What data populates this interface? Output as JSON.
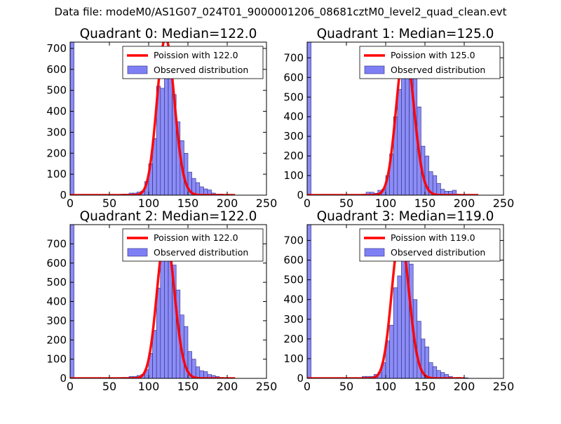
{
  "figure": {
    "suptitle": "Data file: modeM0/AS1G07_024T01_9000001206_08681cztM0_level2_quad_clean.evt",
    "colors": {
      "poisson": "#ff0000",
      "hist_fill": "#7f7ff5",
      "hist_edge": "#2a2a80"
    }
  },
  "chart_data": [
    {
      "type": "bar",
      "title": "Quadrant 0: Median=122.0",
      "median": 122.0,
      "legend": [
        "Poission with 122.0",
        "Observed distribution"
      ],
      "legend_position": "top-right",
      "xlim": [
        0,
        250
      ],
      "ylim": [
        0,
        730
      ],
      "xticks": [
        0,
        50,
        100,
        150,
        200,
        250
      ],
      "yticks": [
        0,
        100,
        200,
        300,
        400,
        500,
        600,
        700
      ],
      "bin_width": 5,
      "bins": [
        [
          0,
          730
        ],
        [
          65,
          5
        ],
        [
          70,
          5
        ],
        [
          75,
          10
        ],
        [
          80,
          10
        ],
        [
          85,
          15
        ],
        [
          90,
          20
        ],
        [
          95,
          65
        ],
        [
          100,
          150
        ],
        [
          105,
          270
        ],
        [
          110,
          520
        ],
        [
          115,
          510
        ],
        [
          120,
          650
        ],
        [
          125,
          570
        ],
        [
          130,
          480
        ],
        [
          135,
          350
        ],
        [
          140,
          260
        ],
        [
          145,
          200
        ],
        [
          150,
          110
        ],
        [
          155,
          80
        ],
        [
          160,
          60
        ],
        [
          165,
          40
        ],
        [
          170,
          30
        ],
        [
          175,
          25
        ],
        [
          180,
          10
        ],
        [
          185,
          5
        ],
        [
          190,
          5
        ],
        [
          200,
          3
        ]
      ],
      "curve_peak": 750,
      "curve_range": [
        0,
        210
      ]
    },
    {
      "type": "bar",
      "title": "Quadrant 1: Median=125.0",
      "median": 125.0,
      "legend": [
        "Poission with 125.0",
        "Observed distribution"
      ],
      "legend_position": "top-right",
      "xlim": [
        0,
        250
      ],
      "ylim": [
        0,
        780
      ],
      "xticks": [
        0,
        50,
        100,
        150,
        200,
        250
      ],
      "yticks": [
        0,
        100,
        200,
        300,
        400,
        500,
        600,
        700
      ],
      "bin_width": 5,
      "bins": [
        [
          0,
          780
        ],
        [
          70,
          5
        ],
        [
          75,
          15
        ],
        [
          80,
          15
        ],
        [
          85,
          10
        ],
        [
          90,
          25
        ],
        [
          95,
          30
        ],
        [
          100,
          100
        ],
        [
          105,
          210
        ],
        [
          110,
          400
        ],
        [
          115,
          540
        ],
        [
          120,
          700
        ],
        [
          125,
          740
        ],
        [
          130,
          720
        ],
        [
          135,
          610
        ],
        [
          140,
          450
        ],
        [
          145,
          250
        ],
        [
          150,
          200
        ],
        [
          155,
          120
        ],
        [
          160,
          100
        ],
        [
          165,
          60
        ],
        [
          170,
          30
        ],
        [
          175,
          20
        ],
        [
          180,
          20
        ],
        [
          185,
          25
        ],
        [
          190,
          5
        ],
        [
          200,
          2
        ]
      ],
      "curve_peak": 750,
      "curve_range": [
        0,
        218
      ]
    },
    {
      "type": "bar",
      "title": "Quadrant 2: Median=122.0",
      "median": 122.0,
      "legend": [
        "Poission with 122.0",
        "Observed distribution"
      ],
      "legend_position": "top-right",
      "xlim": [
        0,
        250
      ],
      "ylim": [
        0,
        800
      ],
      "xticks": [
        0,
        50,
        100,
        150,
        200,
        250
      ],
      "yticks": [
        0,
        100,
        200,
        300,
        400,
        500,
        600,
        700
      ],
      "bin_width": 5,
      "bins": [
        [
          0,
          800
        ],
        [
          65,
          5
        ],
        [
          70,
          5
        ],
        [
          75,
          10
        ],
        [
          80,
          10
        ],
        [
          85,
          15
        ],
        [
          90,
          20
        ],
        [
          95,
          45
        ],
        [
          100,
          130
        ],
        [
          105,
          250
        ],
        [
          110,
          470
        ],
        [
          115,
          690
        ],
        [
          120,
          660
        ],
        [
          125,
          710
        ],
        [
          130,
          590
        ],
        [
          135,
          460
        ],
        [
          140,
          330
        ],
        [
          145,
          270
        ],
        [
          150,
          140
        ],
        [
          155,
          100
        ],
        [
          160,
          60
        ],
        [
          165,
          40
        ],
        [
          170,
          35
        ],
        [
          175,
          20
        ],
        [
          180,
          15
        ],
        [
          185,
          10
        ],
        [
          190,
          5
        ],
        [
          200,
          2
        ]
      ],
      "curve_peak": 750,
      "curve_range": [
        0,
        210
      ]
    },
    {
      "type": "bar",
      "title": "Quadrant 3: Median=119.0",
      "median": 119.0,
      "legend": [
        "Poission with 119.0",
        "Observed distribution"
      ],
      "legend_position": "top-right",
      "xlim": [
        0,
        250
      ],
      "ylim": [
        0,
        780
      ],
      "xticks": [
        0,
        50,
        100,
        150,
        200,
        250
      ],
      "yticks": [
        0,
        100,
        200,
        300,
        400,
        500,
        600,
        700
      ],
      "bin_width": 5,
      "bins": [
        [
          0,
          780
        ],
        [
          70,
          10
        ],
        [
          75,
          10
        ],
        [
          80,
          10
        ],
        [
          85,
          20
        ],
        [
          90,
          30
        ],
        [
          95,
          80
        ],
        [
          100,
          190
        ],
        [
          105,
          270
        ],
        [
          110,
          460
        ],
        [
          115,
          520
        ],
        [
          120,
          720
        ],
        [
          125,
          670
        ],
        [
          130,
          580
        ],
        [
          135,
          400
        ],
        [
          140,
          290
        ],
        [
          145,
          200
        ],
        [
          150,
          160
        ],
        [
          155,
          80
        ],
        [
          160,
          60
        ],
        [
          165,
          40
        ],
        [
          170,
          30
        ],
        [
          175,
          20
        ],
        [
          180,
          10
        ],
        [
          190,
          5
        ],
        [
          200,
          3
        ]
      ],
      "curve_peak": 730,
      "curve_range": [
        0,
        200
      ]
    }
  ]
}
